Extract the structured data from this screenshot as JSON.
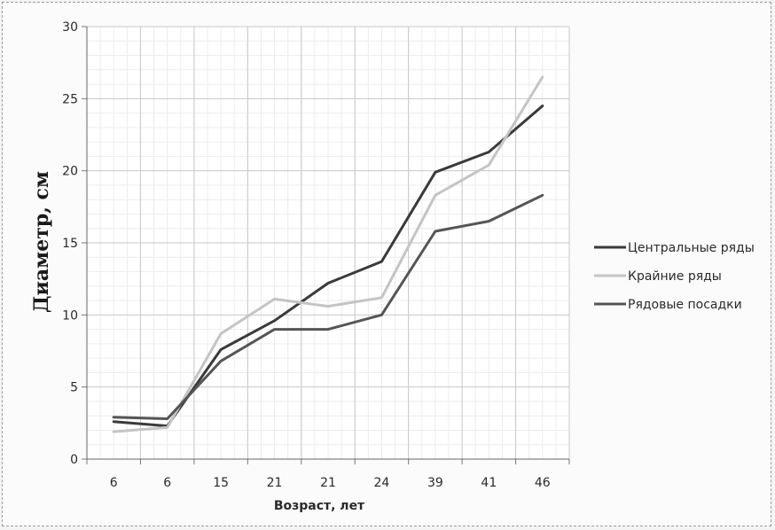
{
  "chart_data": {
    "type": "line",
    "title": "",
    "xlabel": "Возраст, лет",
    "ylabel": "Диаметр, см",
    "categories": [
      "6",
      "6",
      "15",
      "21",
      "21",
      "24",
      "39",
      "41",
      "46"
    ],
    "ylim": [
      0,
      30
    ],
    "yticks": [
      0,
      5,
      10,
      15,
      20,
      25,
      30
    ],
    "grid": true,
    "legend_position": "right",
    "series": [
      {
        "name": "Центральные ряды",
        "color": "#3a3a3a",
        "values": [
          2.6,
          2.3,
          7.6,
          9.6,
          12.2,
          13.7,
          19.9,
          21.3,
          24.5
        ]
      },
      {
        "name": "Крайние ряды",
        "color": "#c4c4c4",
        "values": [
          1.9,
          2.2,
          8.7,
          11.1,
          10.6,
          11.2,
          18.3,
          20.4,
          26.5
        ]
      },
      {
        "name": "Рядовые посадки",
        "color": "#555555",
        "values": [
          2.9,
          2.8,
          6.8,
          9.0,
          9.0,
          10.0,
          15.8,
          16.5,
          18.3
        ]
      }
    ]
  }
}
